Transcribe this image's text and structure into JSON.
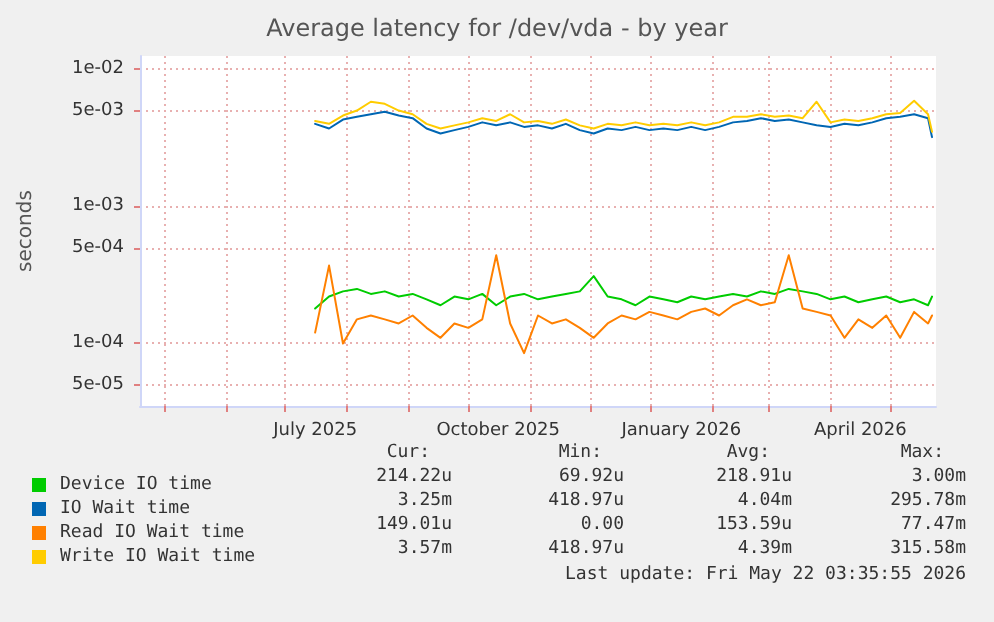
{
  "chart_data": {
    "type": "line",
    "title": "Average latency for /dev/vda - by year",
    "ylabel": "seconds",
    "log": "y",
    "grid": true,
    "legend": "bottom",
    "marker": "none",
    "line_style": "solid",
    "x": [
      "2025-07-16",
      "2025-07-23",
      "2025-07-30",
      "2025-08-06",
      "2025-08-13",
      "2025-08-20",
      "2025-08-27",
      "2025-09-03",
      "2025-09-10",
      "2025-09-17",
      "2025-09-24",
      "2025-10-01",
      "2025-10-08",
      "2025-10-15",
      "2025-10-22",
      "2025-10-29",
      "2025-11-05",
      "2025-11-12",
      "2025-11-19",
      "2025-11-26",
      "2025-12-03",
      "2025-12-10",
      "2025-12-17",
      "2025-12-24",
      "2025-12-31",
      "2026-01-07",
      "2026-01-14",
      "2026-01-21",
      "2026-01-28",
      "2026-02-04",
      "2026-02-11",
      "2026-02-18",
      "2026-02-25",
      "2026-03-04",
      "2026-03-11",
      "2026-03-18",
      "2026-03-25",
      "2026-04-01",
      "2026-04-08",
      "2026-04-15",
      "2026-04-22",
      "2026-04-29",
      "2026-05-06",
      "2026-05-13",
      "2026-05-20",
      "2026-05-22"
    ],
    "xlim": [
      "2025-04-19",
      "2026-05-24"
    ],
    "xticks": [
      {
        "value": "2025-05-01",
        "label": null
      },
      {
        "value": "2025-06-01",
        "label": null
      },
      {
        "value": "2025-07-01",
        "label": null
      },
      {
        "value": "2025-07-16",
        "label": "July 2025"
      },
      {
        "value": "2025-08-01",
        "label": null
      },
      {
        "value": "2025-09-01",
        "label": null
      },
      {
        "value": "2025-10-01",
        "label": null
      },
      {
        "value": "2025-10-16",
        "label": "October 2025"
      },
      {
        "value": "2025-11-01",
        "label": null
      },
      {
        "value": "2025-12-01",
        "label": null
      },
      {
        "value": "2026-01-01",
        "label": null
      },
      {
        "value": "2026-01-16",
        "label": "January 2026"
      },
      {
        "value": "2026-02-01",
        "label": null
      },
      {
        "value": "2026-03-01",
        "label": null
      },
      {
        "value": "2026-04-01",
        "label": null
      },
      {
        "value": "2026-04-16",
        "label": "April 2026"
      },
      {
        "value": "2026-05-01",
        "label": null
      }
    ],
    "ylim": [
      3.5e-05,
      0.0125
    ],
    "yticks": [
      {
        "value": 5e-05,
        "label": "5e-05"
      },
      {
        "value": 0.0001,
        "label": "1e-04"
      },
      {
        "value": 0.0005,
        "label": "5e-04"
      },
      {
        "value": 0.001,
        "label": "1e-03"
      },
      {
        "value": 0.005,
        "label": "5e-03"
      },
      {
        "value": 0.01,
        "label": "1e-02"
      }
    ],
    "series": [
      {
        "name": "Device IO time",
        "color": "#00cc00",
        "values": [
          0.00018,
          0.00022,
          0.00024,
          0.00025,
          0.00023,
          0.00024,
          0.00022,
          0.00023,
          0.00021,
          0.00019,
          0.00022,
          0.00021,
          0.00023,
          0.00019,
          0.00022,
          0.00023,
          0.00021,
          0.00022,
          0.00023,
          0.00024,
          0.00031,
          0.00022,
          0.00021,
          0.00019,
          0.00022,
          0.00021,
          0.0002,
          0.00022,
          0.00021,
          0.00022,
          0.00023,
          0.00022,
          0.00024,
          0.00023,
          0.00025,
          0.00024,
          0.00023,
          0.00021,
          0.00022,
          0.0002,
          0.00021,
          0.00022,
          0.0002,
          0.00021,
          0.00019,
          0.00022
        ]
      },
      {
        "name": "IO Wait time",
        "color": "#0066b3",
        "values": [
          0.004,
          0.0037,
          0.0043,
          0.0045,
          0.0047,
          0.0049,
          0.0046,
          0.0044,
          0.0037,
          0.0034,
          0.0036,
          0.0038,
          0.0041,
          0.0039,
          0.0041,
          0.0038,
          0.0039,
          0.0037,
          0.004,
          0.0036,
          0.0034,
          0.0037,
          0.0036,
          0.0038,
          0.0036,
          0.0037,
          0.0036,
          0.0038,
          0.0036,
          0.0038,
          0.0041,
          0.0042,
          0.0044,
          0.0042,
          0.0043,
          0.0041,
          0.0039,
          0.0038,
          0.004,
          0.0039,
          0.0041,
          0.0044,
          0.0045,
          0.0047,
          0.0044,
          0.0032
        ]
      },
      {
        "name": "Read IO Wait time",
        "color": "#ff8000",
        "values": [
          0.00012,
          0.00037,
          0.0001,
          0.00015,
          0.00016,
          0.00015,
          0.00014,
          0.00016,
          0.00013,
          0.00011,
          0.00014,
          0.00013,
          0.00015,
          0.00044,
          0.00014,
          8.5e-05,
          0.00016,
          0.00014,
          0.00015,
          0.00013,
          0.00011,
          0.00014,
          0.00016,
          0.00015,
          0.00017,
          0.00016,
          0.00015,
          0.00017,
          0.00018,
          0.00016,
          0.00019,
          0.00021,
          0.00019,
          0.0002,
          0.00044,
          0.00018,
          0.00017,
          0.00016,
          0.00011,
          0.00015,
          0.00013,
          0.00016,
          0.00011,
          0.00017,
          0.00014,
          0.00016
        ]
      },
      {
        "name": "Write IO Wait time",
        "color": "#ffcc00",
        "values": [
          0.0042,
          0.004,
          0.0046,
          0.005,
          0.0058,
          0.0056,
          0.005,
          0.0047,
          0.004,
          0.0037,
          0.0039,
          0.0041,
          0.0044,
          0.0042,
          0.0047,
          0.0041,
          0.0042,
          0.004,
          0.0043,
          0.0039,
          0.0037,
          0.004,
          0.0039,
          0.0041,
          0.0039,
          0.004,
          0.0039,
          0.0041,
          0.0039,
          0.0041,
          0.0045,
          0.0045,
          0.0047,
          0.0045,
          0.0046,
          0.0044,
          0.0058,
          0.0041,
          0.0043,
          0.0042,
          0.0044,
          0.0047,
          0.0048,
          0.0059,
          0.0047,
          0.0035
        ]
      }
    ],
    "annotations": [
      "Cur:",
      "Min:",
      "Avg:",
      "Max:",
      "214.22u",
      "69.92u",
      "218.91u",
      "3.00m",
      "3.25m",
      "418.97u",
      "4.04m",
      "295.78m",
      "149.01u",
      "0.00",
      "153.59u",
      "77.47m",
      "3.57m",
      "418.97u",
      "4.39m",
      "315.58m",
      "Last update: Fri May 22 03:35:55 2026"
    ]
  }
}
